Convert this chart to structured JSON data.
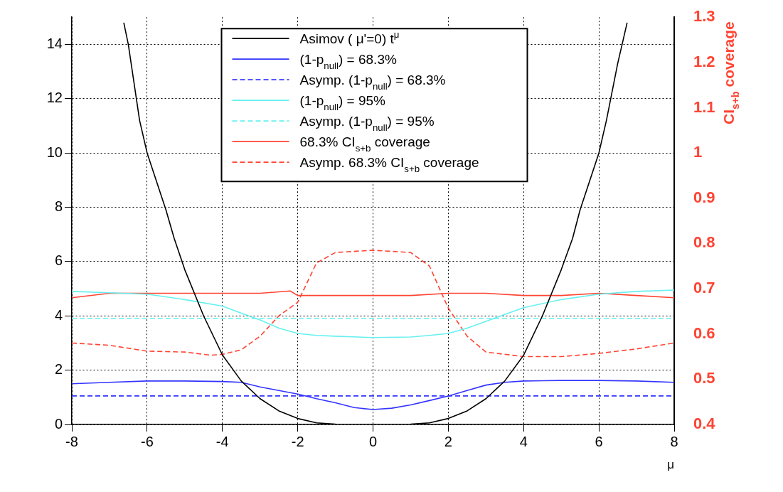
{
  "chart_data": {
    "type": "line",
    "xlabel": "μ",
    "y2label": "CI$_{s+b}$ coverage",
    "xlim": [
      -8,
      8
    ],
    "xticks": [
      -8,
      -6,
      -4,
      -2,
      0,
      2,
      4,
      6,
      8
    ],
    "ylim": [
      0,
      15
    ],
    "yticks": [
      0,
      2,
      4,
      6,
      8,
      10,
      12,
      14
    ],
    "y2lim": [
      0.4,
      1.3
    ],
    "y2ticks": [
      0.4,
      0.5,
      0.6,
      0.7,
      0.8,
      0.9,
      1,
      1.1,
      1.2,
      1.3
    ],
    "grid": true,
    "legend": "top",
    "marker": "none",
    "series": [
      {
        "name": "Asimov ( μ'=0) t$^{μ}$",
        "color": "#000000",
        "line_style": "solid",
        "x": [
          -6.62,
          -6.5,
          -6.2,
          -6,
          -5.5,
          -5.28,
          -5,
          -4.5,
          -4,
          -3.5,
          -3,
          -2.5,
          -2,
          -1.5,
          -1,
          0,
          1,
          1.5,
          2,
          2.5,
          3,
          3.5,
          4,
          4.5,
          5,
          5.3,
          5.5,
          6,
          6.2,
          6.5,
          6.75
        ],
        "values": [
          14.8,
          14,
          11.2,
          10,
          7.9,
          6.85,
          5.7,
          4,
          2.56,
          1.6,
          0.95,
          0.5,
          0.22,
          0.06,
          0.01,
          0,
          0.01,
          0.06,
          0.22,
          0.5,
          0.95,
          1.6,
          2.55,
          4,
          5.7,
          6.85,
          7.9,
          10,
          11.2,
          13.3,
          14.8
        ]
      },
      {
        "name": "(1-p$_{null}$) = 68.3%",
        "color": "#3333ff",
        "line_style": "solid",
        "x": [
          -8,
          -7,
          -6,
          -5,
          -4,
          -3.5,
          -3,
          -2.5,
          -2,
          -1.5,
          -1,
          -0.5,
          0,
          0.5,
          1,
          1.5,
          2,
          2.5,
          3,
          3.5,
          4,
          5,
          6,
          7,
          8
        ],
        "values": [
          1.5,
          1.55,
          1.6,
          1.6,
          1.58,
          1.55,
          1.38,
          1.25,
          1.12,
          0.95,
          0.8,
          0.62,
          0.55,
          0.6,
          0.72,
          0.88,
          1.05,
          1.25,
          1.45,
          1.55,
          1.6,
          1.62,
          1.62,
          1.6,
          1.55
        ]
      },
      {
        "name": "Asymp. (1-p$_{null}$) = 68.3%",
        "color": "#3333ff",
        "line_style": "dashed",
        "x": [
          -8,
          8
        ],
        "values": [
          1.05,
          1.05
        ]
      },
      {
        "name": "(1-p$_{null}$) = 95%",
        "color": "#66f0f0",
        "line_style": "solid",
        "x": [
          -8,
          -7,
          -6,
          -5,
          -4,
          -3.5,
          -3,
          -2.5,
          -2,
          -1.5,
          -1,
          0,
          1,
          1.5,
          2,
          2.5,
          3,
          3.5,
          4,
          5,
          6,
          7,
          8
        ],
        "values": [
          4.9,
          4.85,
          4.8,
          4.6,
          4.36,
          4.1,
          3.85,
          3.55,
          3.35,
          3.28,
          3.25,
          3.2,
          3.22,
          3.28,
          3.35,
          3.55,
          3.8,
          4.05,
          4.3,
          4.6,
          4.8,
          4.9,
          4.95
        ]
      },
      {
        "name": "Asymp. (1-p$_{null}$) = 95%",
        "color": "#66f0f0",
        "line_style": "dashed",
        "x": [
          -8,
          8
        ],
        "values": [
          3.9,
          3.9
        ]
      },
      {
        "name": "68.3% CI$_{s+b}$ coverage",
        "color": "#ff4433",
        "line_style": "solid",
        "axis": "y2",
        "x": [
          -8,
          -7,
          -6,
          -5,
          -4,
          -3,
          -2.2,
          -2,
          -1,
          0,
          1,
          2,
          3,
          4,
          5,
          6,
          7,
          8
        ],
        "values": [
          0.68,
          0.69,
          0.69,
          0.69,
          0.69,
          0.69,
          0.695,
          0.685,
          0.685,
          0.685,
          0.685,
          0.69,
          0.69,
          0.685,
          0.685,
          0.69,
          0.685,
          0.68
        ]
      },
      {
        "name": "Asymp. 68.3% CI$_{s+b}$ coverage",
        "color": "#ff4433",
        "line_style": "dashed",
        "axis": "y2",
        "x": [
          -8,
          -7,
          -6,
          -5,
          -4.3,
          -4,
          -3.5,
          -3,
          -2.5,
          -2,
          -1.5,
          -1,
          0,
          1,
          1.5,
          2,
          2.5,
          3,
          4,
          5,
          6,
          7,
          8
        ],
        "values": [
          0.58,
          0.575,
          0.562,
          0.56,
          0.553,
          0.555,
          0.565,
          0.595,
          0.64,
          0.67,
          0.757,
          0.78,
          0.785,
          0.78,
          0.75,
          0.657,
          0.595,
          0.56,
          0.55,
          0.55,
          0.557,
          0.567,
          0.58
        ]
      }
    ]
  }
}
